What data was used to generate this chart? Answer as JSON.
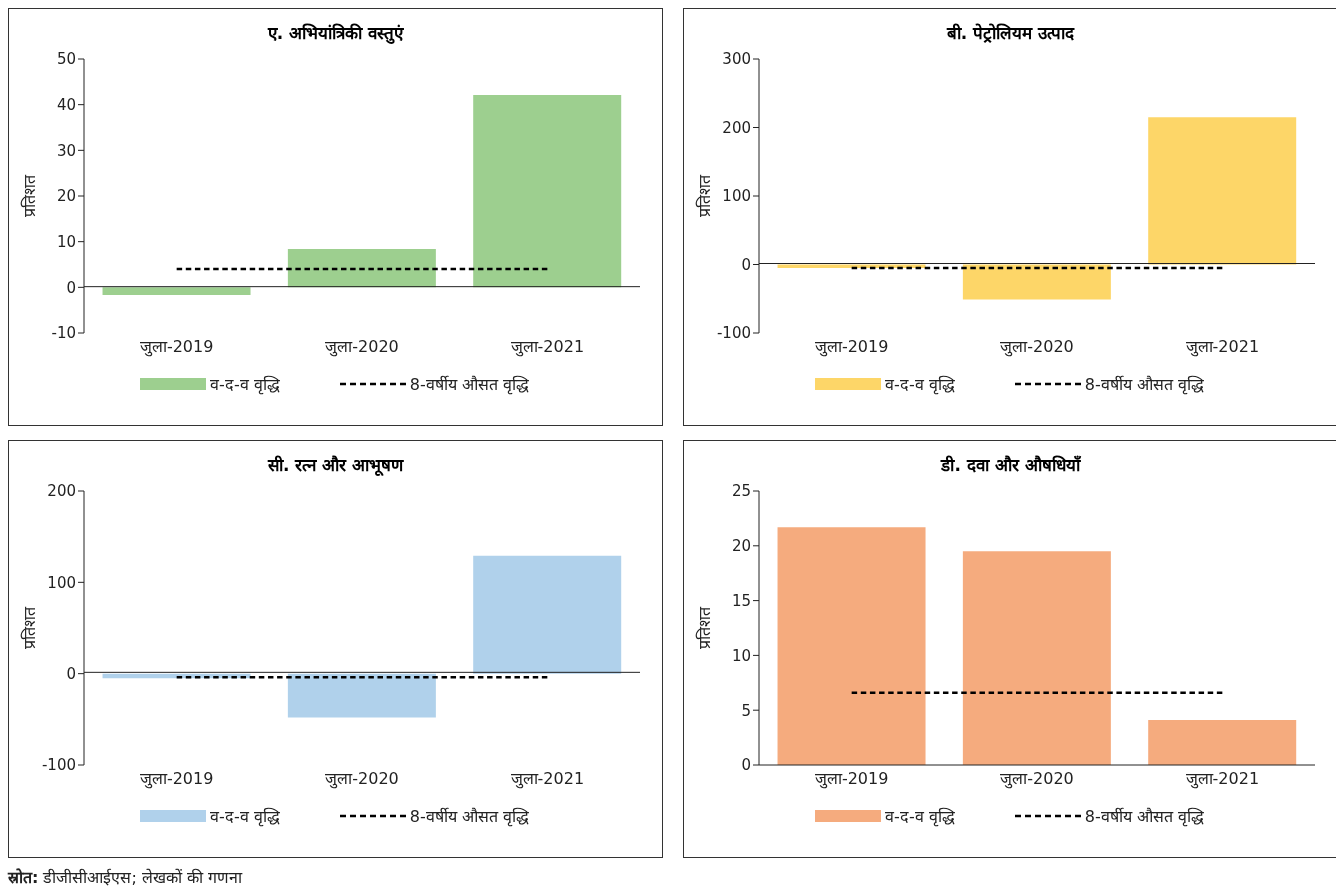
{
  "chart_data": [
    {
      "type": "bar",
      "title": "ए. अभियांत्रिकी वस्तुएं",
      "ylabel": "प्रतिशत",
      "categories": [
        "जुला-2019",
        "जुला-2020",
        "जुला-2021"
      ],
      "series": [
        {
          "name": "व-द-व वृद्धि",
          "color": "#9dcf8f",
          "values": [
            -1.7,
            8.4,
            42.1
          ]
        },
        {
          "name": "8-वर्षीय औसत वृद्धि",
          "type": "line",
          "color": "#000000",
          "line_style": "dashed",
          "values": [
            4,
            4,
            4
          ]
        }
      ],
      "ylim": [
        -10,
        50
      ],
      "yticks": [
        -10,
        0,
        10,
        20,
        30,
        40,
        50
      ],
      "marker": "none",
      "legend": "bottom"
    },
    {
      "type": "bar",
      "title": "बी. पेट्रोलियम उत्पाद",
      "ylabel": "प्रतिशत",
      "categories": [
        "जुला-2019",
        "जुला-2020",
        "जुला-2021"
      ],
      "series": [
        {
          "name": "व-द-व वृद्धि",
          "color": "#fdd668",
          "values": [
            -5,
            -51,
            215
          ]
        },
        {
          "name": "8-वर्षीय औसत वृद्धि",
          "type": "line",
          "color": "#000000",
          "line_style": "dashed",
          "values": [
            -5,
            -5,
            -5
          ]
        }
      ],
      "ylim": [
        -100,
        300
      ],
      "yticks": [
        -100,
        0,
        100,
        200,
        300
      ],
      "marker": "none",
      "legend": "bottom"
    },
    {
      "type": "bar",
      "title": "सी. रत्न और आभूषण",
      "ylabel": "प्रतिशत",
      "categories": [
        "जुला-2019",
        "जुला-2020",
        "जुला-2021"
      ],
      "series": [
        {
          "name": "व-द-व वृद्धि",
          "color": "#b0d1eb",
          "values": [
            -5,
            -48,
            129
          ]
        },
        {
          "name": "8-वर्षीय औसत वृद्धि",
          "type": "line",
          "color": "#000000",
          "line_style": "dashed",
          "values": [
            -4,
            -4,
            -4
          ]
        }
      ],
      "ylim": [
        -100,
        200
      ],
      "yticks": [
        -100,
        0,
        100,
        200
      ],
      "marker": "none",
      "legend": "bottom"
    },
    {
      "type": "bar",
      "title": "डी. दवा और औषधियाँ",
      "ylabel": "प्रतिशत",
      "categories": [
        "जुला-2019",
        "जुला-2020",
        "जुला-2021"
      ],
      "series": [
        {
          "name": "व-द-व वृद्धि",
          "color": "#f5ab7e",
          "values": [
            21.7,
            19.5,
            4.1
          ]
        },
        {
          "name": "8-वर्षीय औसत वृद्धि",
          "type": "line",
          "color": "#000000",
          "line_style": "dashed",
          "values": [
            6.6,
            6.6,
            6.6
          ]
        }
      ],
      "ylim": [
        0,
        25
      ],
      "yticks": [
        0,
        5,
        10,
        15,
        20,
        25
      ],
      "marker": "none",
      "legend": "bottom",
      "annotations": [
        "स्रोत: डीजीसीआईएस; लेखकों की गणना"
      ]
    }
  ]
}
